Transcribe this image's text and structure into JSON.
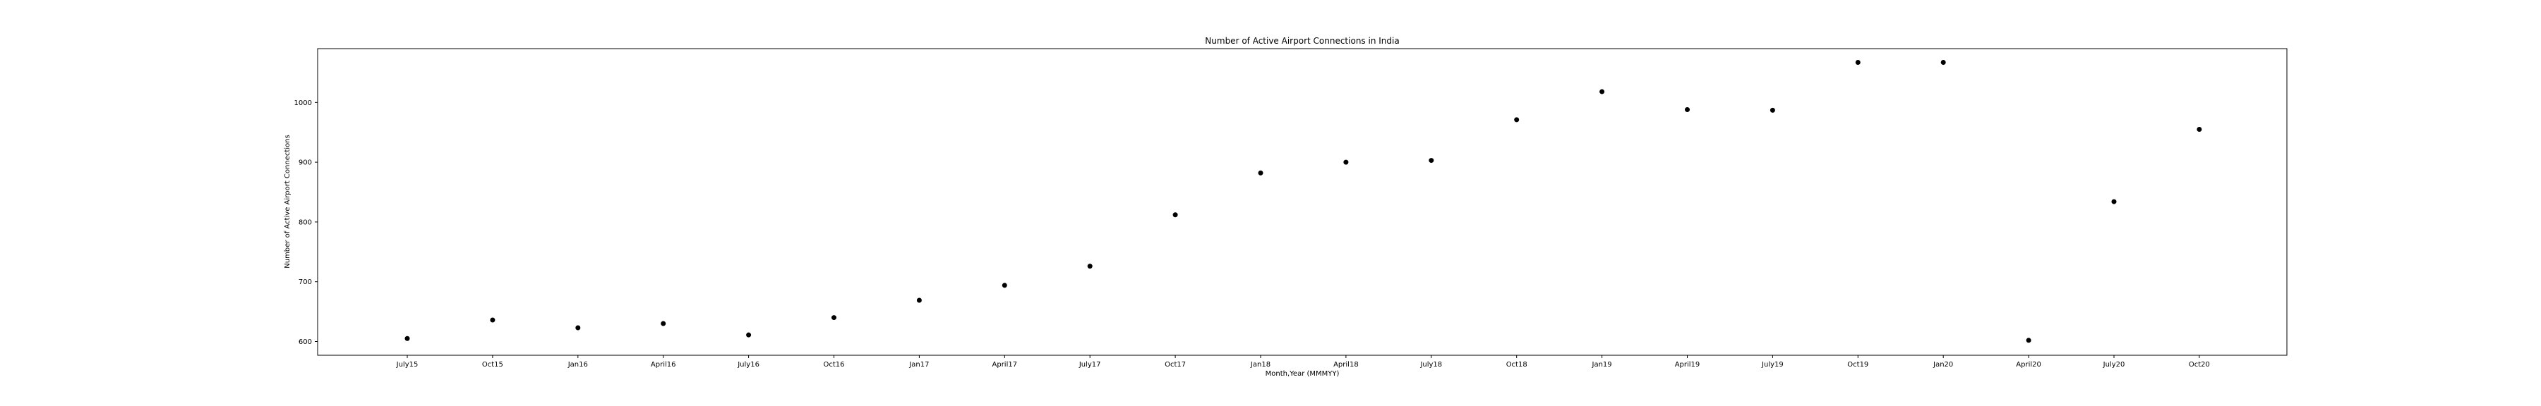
{
  "chart_data": {
    "type": "scatter",
    "title": "Number of Active Airport Connections in India",
    "xlabel": "Month,Year (MMMYY)",
    "ylabel": "Number of Active Airport Connections",
    "categories": [
      "July15",
      "Oct15",
      "Jan16",
      "April16",
      "July16",
      "Oct16",
      "Jan17",
      "April17",
      "July17",
      "Oct17",
      "Jan18",
      "April18",
      "July18",
      "Oct18",
      "Jan19",
      "April19",
      "July19",
      "Oct19",
      "Jan20",
      "April20",
      "July20",
      "Oct20"
    ],
    "series": [
      {
        "values": [
          605,
          636,
          623,
          630,
          611,
          640,
          669,
          694,
          726,
          812,
          882,
          900,
          903,
          971,
          1018,
          988,
          987,
          1067,
          1067,
          602,
          834,
          955
        ]
      }
    ],
    "yticks": [
      600,
      700,
      800,
      900,
      1000
    ],
    "ylim": [
      577,
      1090
    ],
    "grid": false,
    "marker_color": "#000000"
  }
}
